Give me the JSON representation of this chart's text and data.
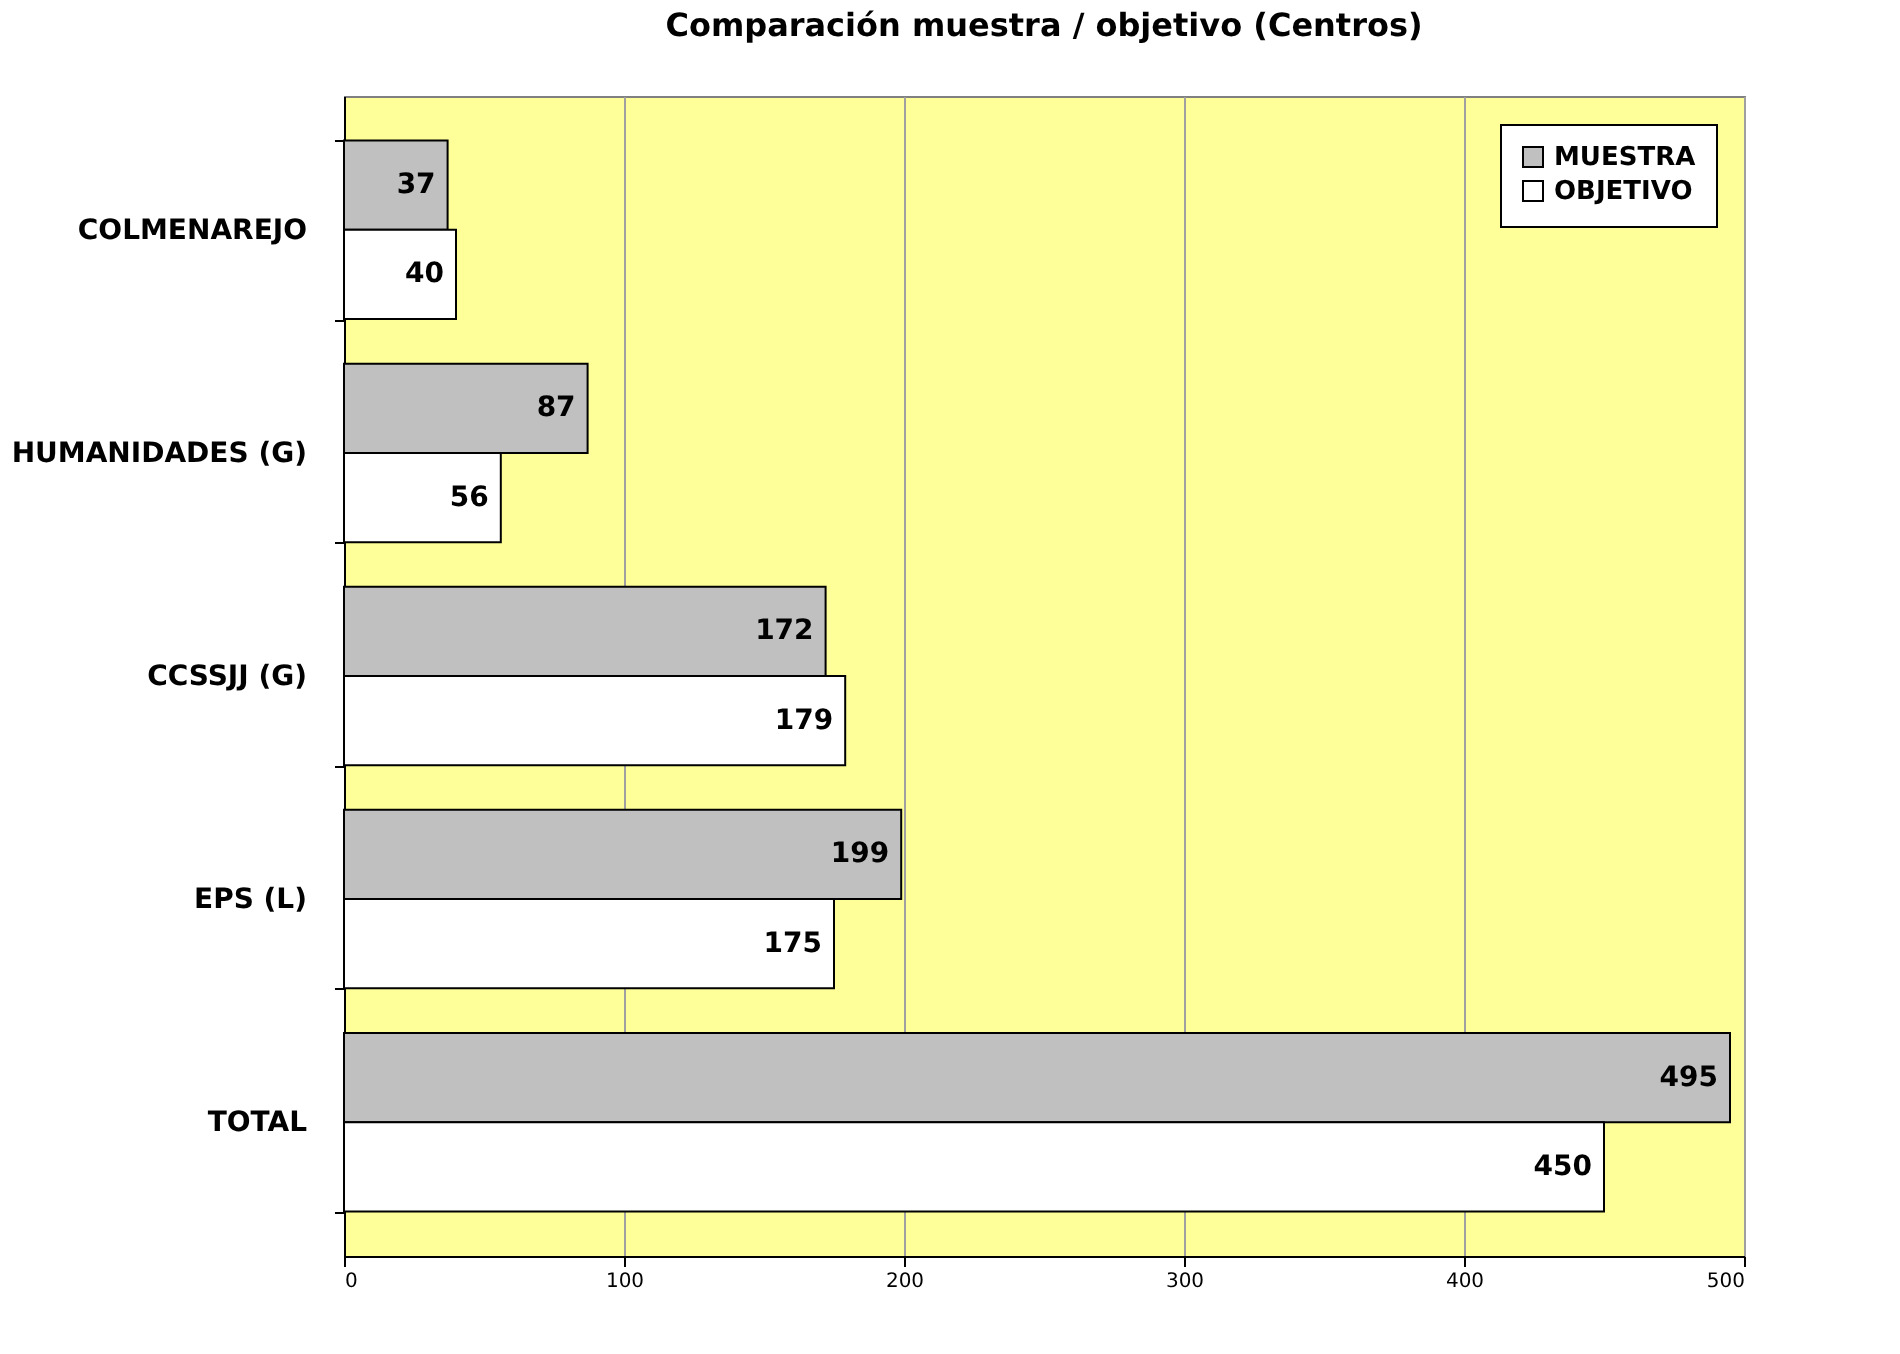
{
  "chart_data": {
    "type": "bar",
    "orientation": "horizontal",
    "title": "Comparación muestra / objetivo (Centros)",
    "categories": [
      "COLMENAREJO",
      "HUMANIDADES (G)",
      "CCSSJJ (G)",
      "EPS (L)",
      "TOTAL"
    ],
    "series": [
      {
        "name": "MUESTRA",
        "color": "#c0c0c0",
        "values": [
          37,
          87,
          172,
          199,
          495
        ]
      },
      {
        "name": "OBJETIVO",
        "color": "#ffffff",
        "values": [
          40,
          56,
          179,
          175,
          450
        ]
      }
    ],
    "xlim": [
      0,
      500
    ],
    "xticks": [
      0,
      100,
      200,
      300,
      400,
      500
    ],
    "grid": "x",
    "legend": "top right",
    "data_labels": true
  }
}
